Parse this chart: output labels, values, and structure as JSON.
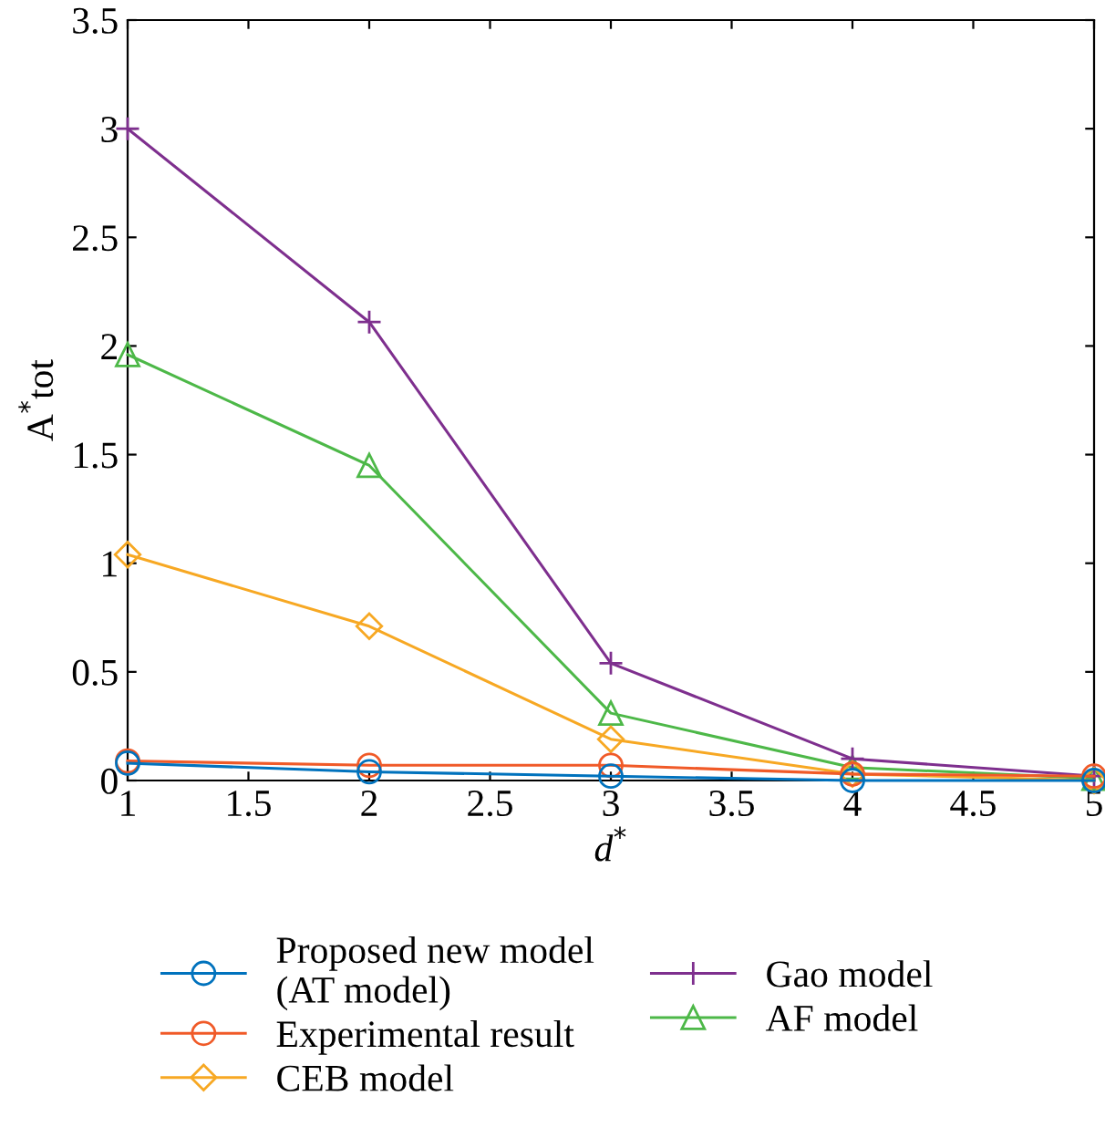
{
  "chart_data": {
    "type": "line",
    "xlabel": "d$^{*}$",
    "ylabel": "A$^{*}$tot",
    "x": [
      1,
      2,
      3,
      4,
      5
    ],
    "xlim": [
      1,
      5
    ],
    "xticks": [
      1,
      1.5,
      2,
      2.5,
      3,
      3.5,
      4,
      4.5,
      5
    ],
    "ylim": [
      0,
      3.5
    ],
    "yticks": [
      0,
      0.5,
      1,
      1.5,
      2,
      2.5,
      3,
      3.5
    ],
    "grid": false,
    "legend": "bottom",
    "line_style": "solid",
    "series": [
      {
        "name": "Proposed new model\n(AT model)",
        "color": "#0072bd",
        "marker": "circle",
        "values": [
          0.08,
          0.04,
          0.02,
          0.0,
          0.0
        ]
      },
      {
        "name": "Experimental result",
        "color": "#f05a28",
        "marker": "circle",
        "values": [
          0.09,
          0.07,
          0.07,
          0.03,
          0.02
        ]
      },
      {
        "name": "CEB model",
        "color": "#f7a823",
        "marker": "diamond",
        "values": [
          1.04,
          0.71,
          0.19,
          0.03,
          0.0
        ]
      },
      {
        "name": "Gao model",
        "color": "#7e2f8e",
        "marker": "cross",
        "values": [
          3.0,
          2.11,
          0.54,
          0.1,
          0.02
        ]
      },
      {
        "name": "AF model",
        "color": "#4db848",
        "marker": "triangle",
        "values": [
          1.96,
          1.45,
          0.31,
          0.06,
          0.01
        ]
      }
    ]
  }
}
